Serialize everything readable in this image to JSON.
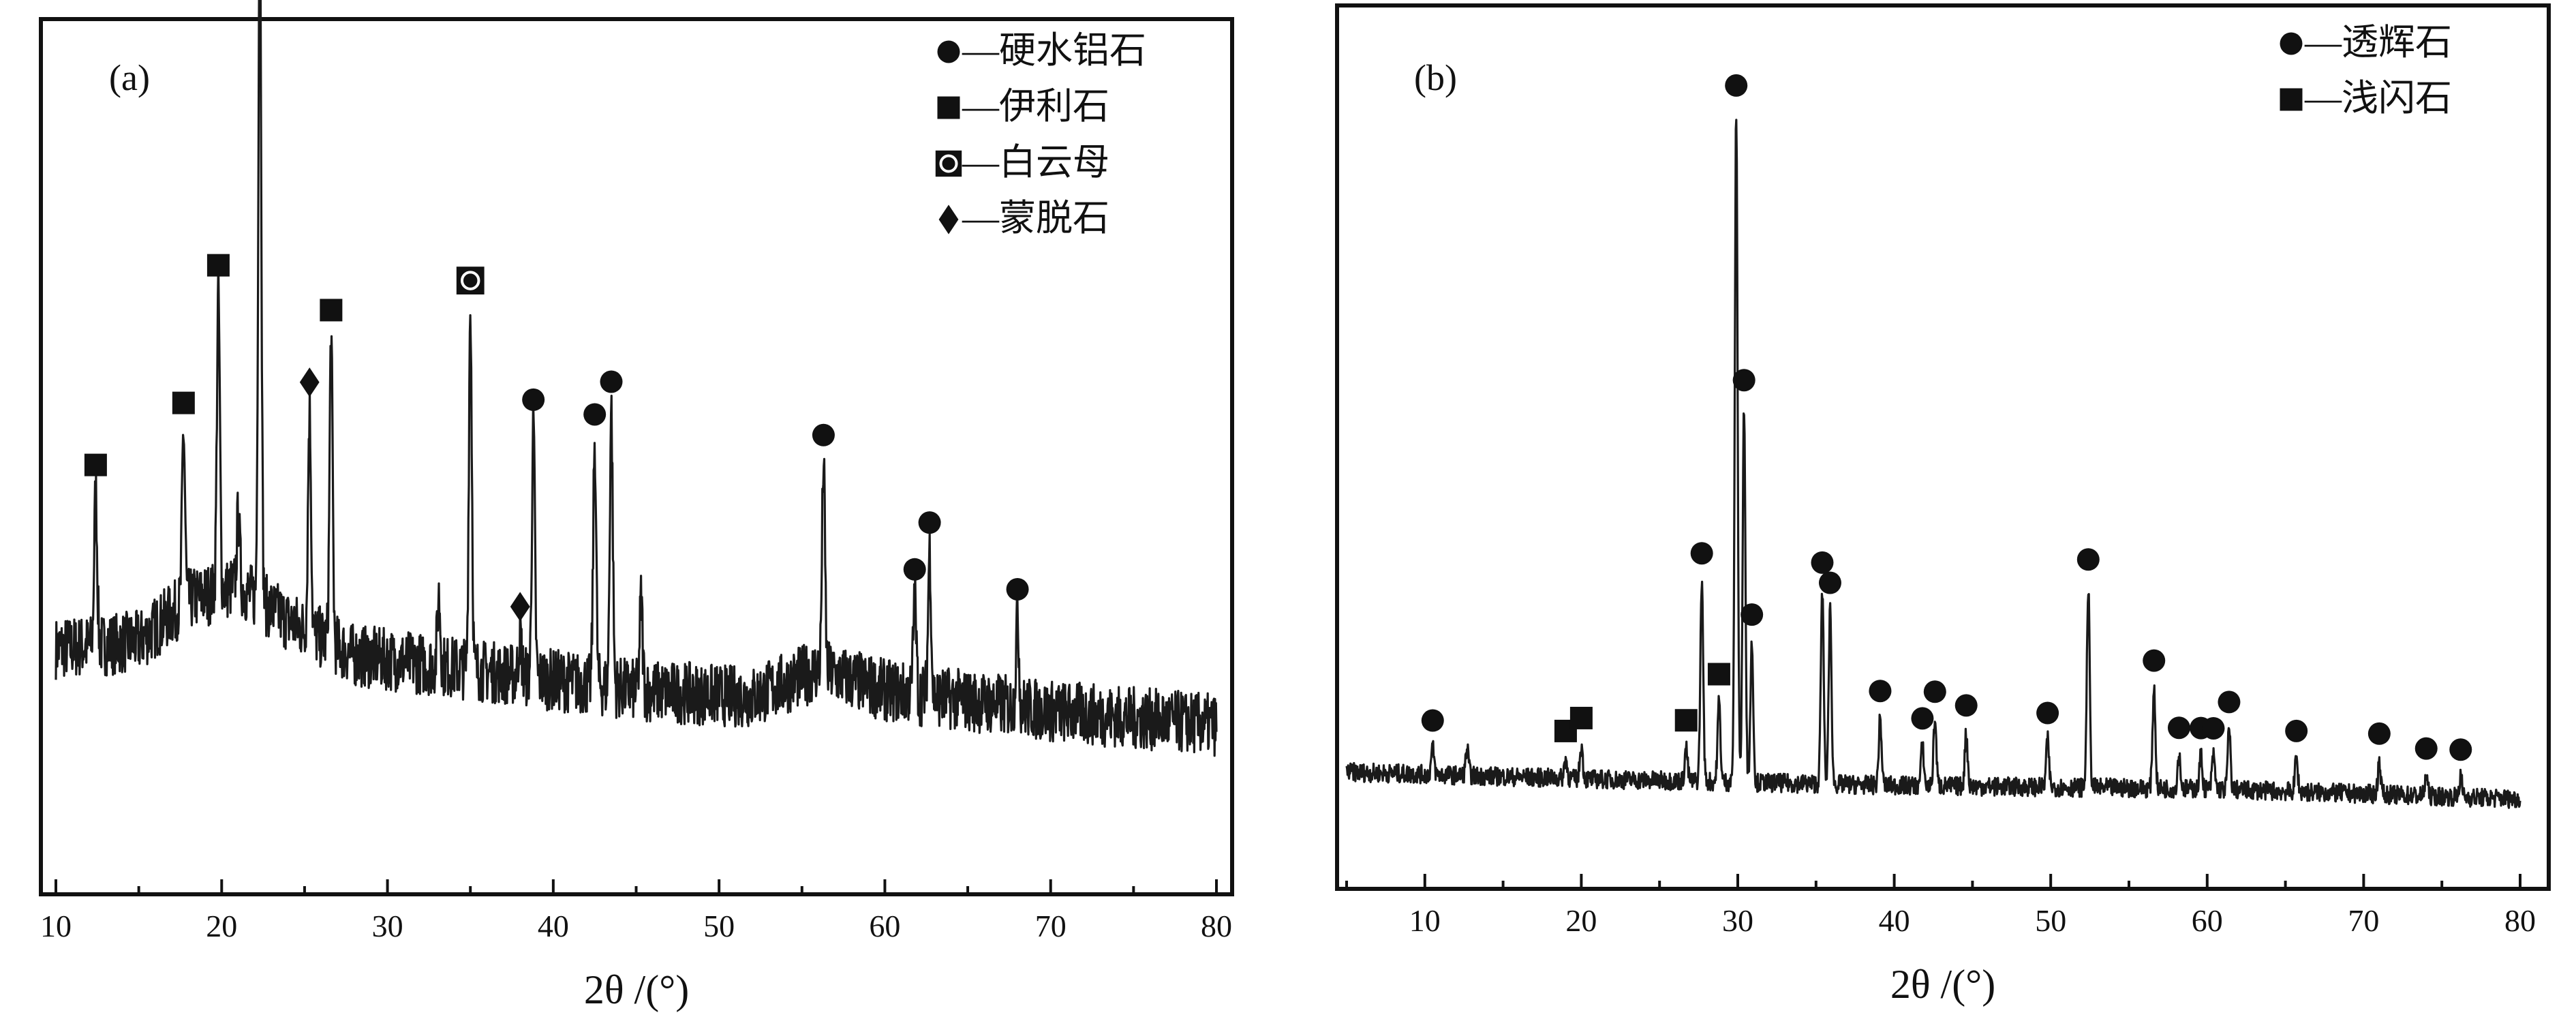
{
  "chart_data": [
    {
      "type": "line",
      "panel_label": "(a)",
      "xlabel": "2θ /(°)",
      "ylabel": "",
      "xlim": [
        10,
        80
      ],
      "xticks": [
        10,
        20,
        30,
        40,
        50,
        60,
        70,
        80
      ],
      "y_axis_ticks": false,
      "grid": false,
      "legend_placement": "top-right",
      "legend": [
        {
          "marker": "circle",
          "label": "—硬水铝石"
        },
        {
          "marker": "square",
          "label": "—伊利石"
        },
        {
          "marker": "square-circle",
          "label": "—白云母"
        },
        {
          "marker": "diamond",
          "label": "—蒙脱石"
        }
      ],
      "baseline": [
        [
          10,
          0.18
        ],
        [
          15,
          0.19
        ],
        [
          18,
          0.25
        ],
        [
          21,
          0.27
        ],
        [
          24,
          0.22
        ],
        [
          28,
          0.17
        ],
        [
          35,
          0.15
        ],
        [
          45,
          0.12
        ],
        [
          52,
          0.11
        ],
        [
          56,
          0.15
        ],
        [
          60,
          0.12
        ],
        [
          70,
          0.09
        ],
        [
          80,
          0.07
        ]
      ],
      "peaks": [
        {
          "x": 12.4,
          "h": 0.22,
          "marker": "square"
        },
        {
          "x": 17.7,
          "h": 0.25,
          "marker": "square"
        },
        {
          "x": 19.8,
          "h": 0.43,
          "marker": "square"
        },
        {
          "x": 21.0,
          "h": 0.1,
          "marker": ""
        },
        {
          "x": 22.3,
          "h": 1.0,
          "marker": "circle"
        },
        {
          "x": 25.3,
          "h": 0.32,
          "marker": "diamond"
        },
        {
          "x": 26.6,
          "h": 0.44,
          "marker": "square"
        },
        {
          "x": 33.1,
          "h": 0.1,
          "marker": ""
        },
        {
          "x": 35.0,
          "h": 0.52,
          "marker": "square-circle"
        },
        {
          "x": 38.0,
          "h": 0.06,
          "marker": "diamond"
        },
        {
          "x": 38.8,
          "h": 0.36,
          "marker": "circle"
        },
        {
          "x": 42.5,
          "h": 0.35,
          "marker": "circle"
        },
        {
          "x": 43.5,
          "h": 0.4,
          "marker": "circle"
        },
        {
          "x": 45.3,
          "h": 0.13,
          "marker": ""
        },
        {
          "x": 56.3,
          "h": 0.3,
          "marker": "circle"
        },
        {
          "x": 61.8,
          "h": 0.14,
          "marker": "circle"
        },
        {
          "x": 62.7,
          "h": 0.21,
          "marker": "circle"
        },
        {
          "x": 68.0,
          "h": 0.13,
          "marker": "circle"
        }
      ]
    },
    {
      "type": "line",
      "panel_label": "(b)",
      "xlabel": "2θ /(°)",
      "ylabel": "",
      "xlim": [
        5,
        80
      ],
      "xticks": [
        10,
        20,
        30,
        40,
        50,
        60,
        70,
        80
      ],
      "y_axis_ticks": false,
      "grid": false,
      "legend_placement": "top-right",
      "legend": [
        {
          "marker": "circle",
          "label": "—透辉石"
        },
        {
          "marker": "square",
          "label": "—浅闪石"
        }
      ],
      "baseline": [
        [
          5,
          0.04
        ],
        [
          20,
          0.03
        ],
        [
          40,
          0.02
        ],
        [
          60,
          0.015
        ],
        [
          80,
          0.0
        ]
      ],
      "peaks": [
        {
          "x": 10.5,
          "h": 0.04,
          "marker": "circle"
        },
        {
          "x": 12.7,
          "h": 0.04,
          "marker": ""
        },
        {
          "x": 19.0,
          "h": 0.03,
          "marker": "square"
        },
        {
          "x": 20.0,
          "h": 0.05,
          "marker": "square"
        },
        {
          "x": 26.7,
          "h": 0.05,
          "marker": "square"
        },
        {
          "x": 27.7,
          "h": 0.3,
          "marker": "circle"
        },
        {
          "x": 28.8,
          "h": 0.12,
          "marker": "square"
        },
        {
          "x": 29.9,
          "h": 1.0,
          "marker": "circle"
        },
        {
          "x": 30.4,
          "h": 0.56,
          "marker": "circle"
        },
        {
          "x": 30.9,
          "h": 0.21,
          "marker": "circle"
        },
        {
          "x": 35.4,
          "h": 0.29,
          "marker": "circle"
        },
        {
          "x": 35.9,
          "h": 0.26,
          "marker": "circle"
        },
        {
          "x": 39.1,
          "h": 0.1,
          "marker": "circle"
        },
        {
          "x": 41.8,
          "h": 0.06,
          "marker": "circle"
        },
        {
          "x": 42.6,
          "h": 0.1,
          "marker": "circle"
        },
        {
          "x": 44.6,
          "h": 0.08,
          "marker": "circle"
        },
        {
          "x": 49.8,
          "h": 0.07,
          "marker": "circle"
        },
        {
          "x": 52.4,
          "h": 0.3,
          "marker": "circle"
        },
        {
          "x": 56.6,
          "h": 0.15,
          "marker": "circle"
        },
        {
          "x": 58.2,
          "h": 0.05,
          "marker": "circle"
        },
        {
          "x": 59.6,
          "h": 0.05,
          "marker": "circle"
        },
        {
          "x": 60.4,
          "h": 0.05,
          "marker": "circle"
        },
        {
          "x": 61.4,
          "h": 0.09,
          "marker": "circle"
        },
        {
          "x": 65.7,
          "h": 0.05,
          "marker": "circle"
        },
        {
          "x": 71.0,
          "h": 0.05,
          "marker": "circle"
        },
        {
          "x": 74.0,
          "h": 0.03,
          "marker": "circle"
        },
        {
          "x": 76.2,
          "h": 0.03,
          "marker": "circle"
        }
      ]
    }
  ]
}
